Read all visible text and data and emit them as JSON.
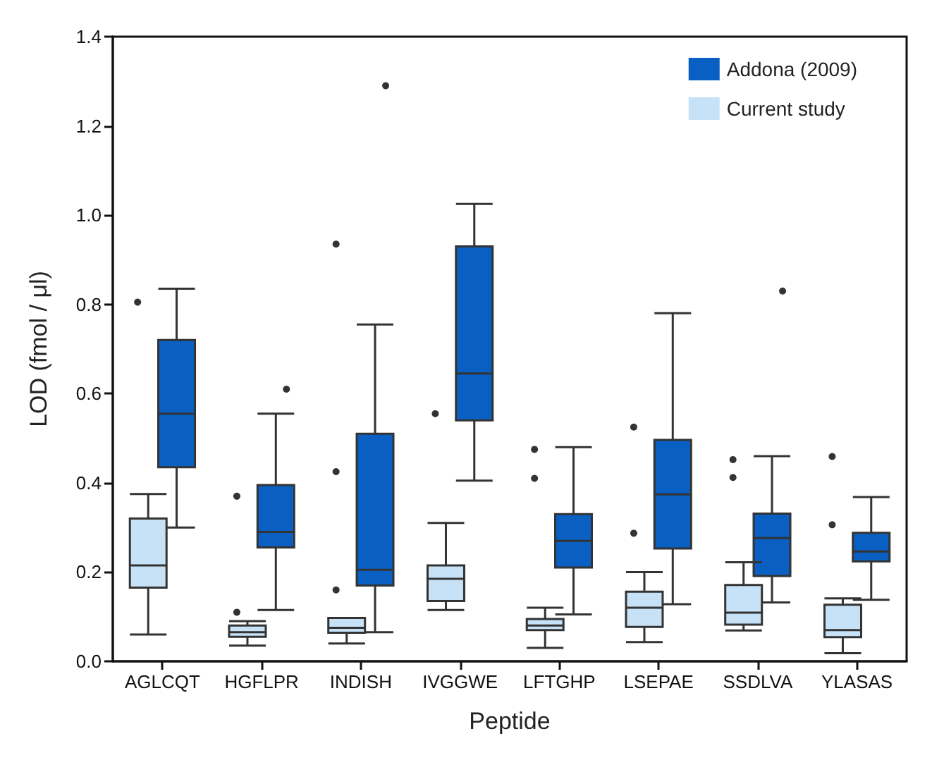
{
  "chart_data": {
    "type": "box",
    "xlabel": "Peptide",
    "ylabel": "LOD (fmol / μl)",
    "categories": [
      "AGLCQT",
      "HGFLPR",
      "INDISH",
      "IVGGWE",
      "LFTGHP",
      "LSEPAE",
      "SSDLVA",
      "YLASAS"
    ],
    "ylim": [
      0,
      1.4
    ],
    "yticks": [
      {
        "value": 0,
        "label": "0.0"
      },
      {
        "value": 0.2,
        "label": "0.2"
      },
      {
        "value": 0.4,
        "label": "0.4"
      },
      {
        "value": 0.6,
        "label": "0.6"
      },
      {
        "value": 0.8,
        "label": "0.8"
      },
      {
        "value": 1,
        "label": "1.0"
      },
      {
        "value": 1.2,
        "label": "1.2"
      },
      {
        "value": 1.4,
        "label": "1.4"
      }
    ],
    "grid": false,
    "legend": "top right",
    "series": [
      {
        "name": "Addona (2009)",
        "color": "#0a60c2",
        "boxes": [
          {
            "low": 0.3,
            "q1": 0.435,
            "median": 0.555,
            "q3": 0.72,
            "high": 0.835
          },
          {
            "low": 0.115,
            "q1": 0.255,
            "median": 0.29,
            "q3": 0.395,
            "high": 0.555,
            "outliers": [
              0.61
            ]
          },
          {
            "low": 0.065,
            "q1": 0.17,
            "median": 0.205,
            "q3": 0.51,
            "high": 0.755,
            "outliers": [
              1.29
            ]
          },
          {
            "low": 0.405,
            "q1": 0.54,
            "median": 0.645,
            "q3": 0.93,
            "high": 1.025
          },
          {
            "low": 0.105,
            "q1": 0.21,
            "median": 0.27,
            "q3": 0.33,
            "high": 0.48
          },
          {
            "low": 0.128,
            "q1": 0.253,
            "median": 0.374,
            "q3": 0.496,
            "high": 0.78
          },
          {
            "low": 0.132,
            "q1": 0.191,
            "median": 0.276,
            "q3": 0.331,
            "high": 0.46,
            "outliers": [
              0.83
            ]
          },
          {
            "low": 0.138,
            "q1": 0.224,
            "median": 0.246,
            "q3": 0.288,
            "high": 0.368
          }
        ]
      },
      {
        "name": "Current study",
        "color": "#c7e2f6",
        "boxes": [
          {
            "low": 0.06,
            "q1": 0.165,
            "median": 0.215,
            "q3": 0.32,
            "high": 0.375,
            "outliers": [
              0.805
            ]
          },
          {
            "low": 0.035,
            "q1": 0.055,
            "median": 0.065,
            "q3": 0.08,
            "high": 0.09,
            "outliers": [
              0.11,
              0.37
            ]
          },
          {
            "low": 0.04,
            "q1": 0.064,
            "median": 0.075,
            "q3": 0.097,
            "high": 0.097,
            "outliers": [
              0.16,
              0.425,
              0.935
            ]
          },
          {
            "low": 0.115,
            "q1": 0.135,
            "median": 0.185,
            "q3": 0.215,
            "high": 0.31,
            "outliers": [
              0.555
            ]
          },
          {
            "low": 0.03,
            "q1": 0.07,
            "median": 0.08,
            "q3": 0.095,
            "high": 0.12,
            "outliers": [
              0.41,
              0.475
            ]
          },
          {
            "low": 0.043,
            "q1": 0.077,
            "median": 0.12,
            "q3": 0.156,
            "high": 0.2,
            "outliers": [
              0.287,
              0.525
            ]
          },
          {
            "low": 0.069,
            "q1": 0.082,
            "median": 0.109,
            "q3": 0.171,
            "high": 0.222,
            "outliers": [
              0.412,
              0.452
            ]
          },
          {
            "low": 0.018,
            "q1": 0.054,
            "median": 0.07,
            "q3": 0.127,
            "high": 0.141,
            "outliers": [
              0.306,
              0.459
            ]
          }
        ]
      }
    ]
  }
}
